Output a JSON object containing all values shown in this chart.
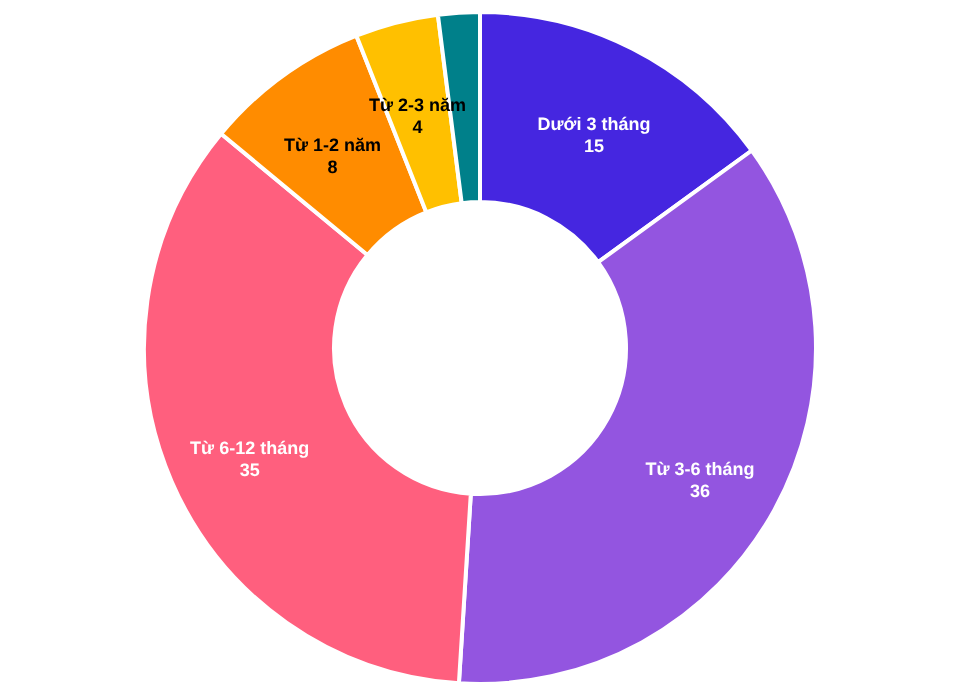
{
  "chart_data": {
    "type": "donut",
    "categories": [
      "Dưới 3 tháng",
      "Từ 3-6 tháng",
      "Từ 6-12 tháng",
      "Từ 1-2 năm",
      "Từ 2-3 năm",
      null
    ],
    "values": [
      15,
      36,
      35,
      8,
      4,
      2
    ],
    "colors": [
      "#4526e0",
      "#9355e0",
      "#ff5f7e",
      "#ff8c00",
      "#ffc000",
      "#00808a"
    ],
    "value_labels": [
      "15",
      "36",
      "35",
      "8",
      "4",
      null
    ],
    "legend": false
  }
}
